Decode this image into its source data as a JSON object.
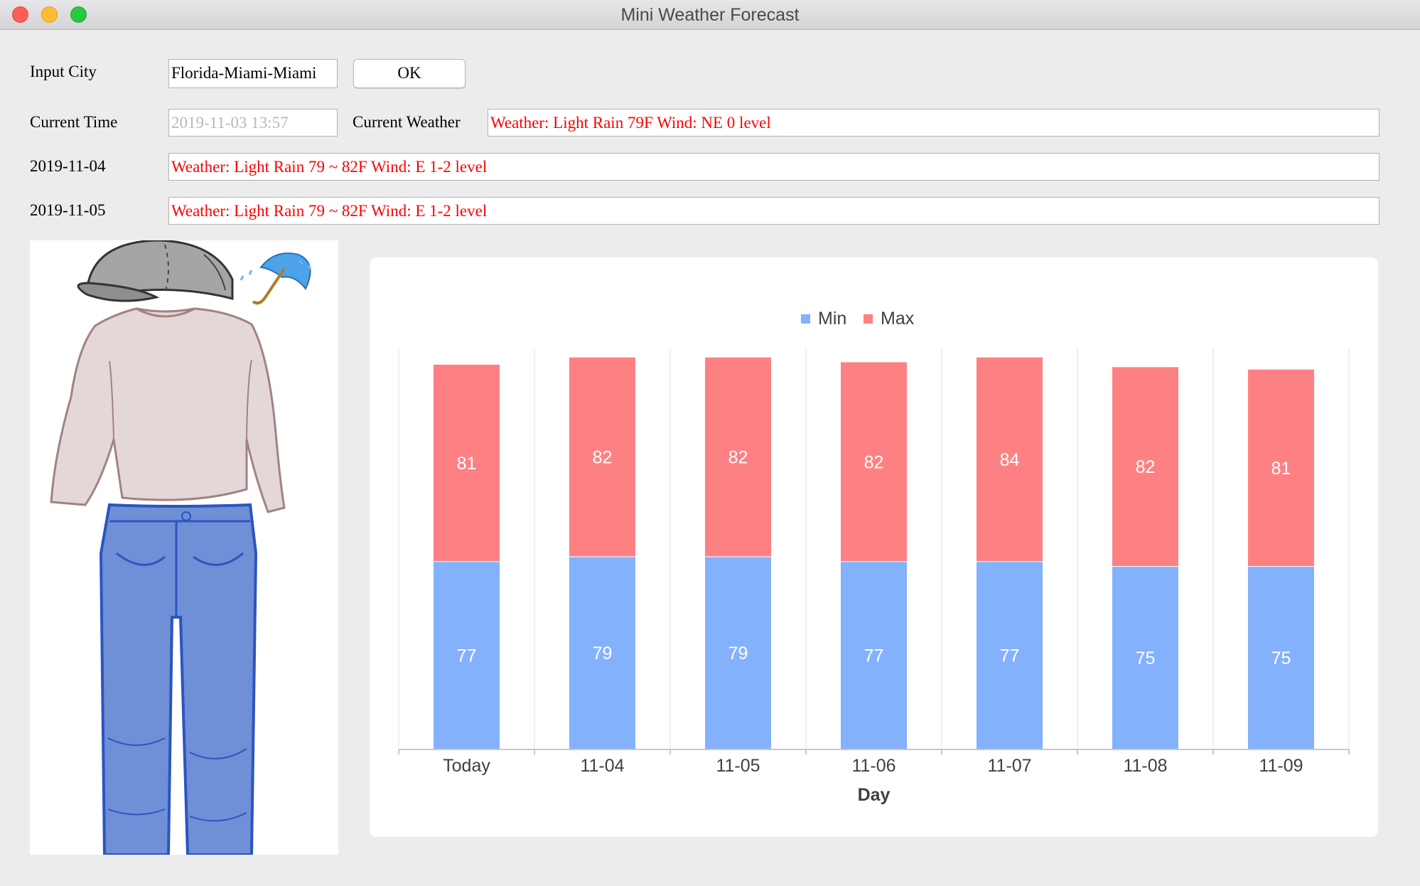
{
  "window": {
    "title": "Mini Weather Forecast"
  },
  "form": {
    "input_city_label": "Input City",
    "city_value": "Florida-Miami-Miami",
    "ok_label": "OK",
    "current_time_label": "Current Time",
    "current_time_value": "2019-11-03 13:57",
    "current_weather_label": "Current Weather",
    "current_weather_value": "Weather: Light Rain  79F  Wind: NE  0 level",
    "day1_label": "2019-11-04",
    "day1_value": "Weather: Light Rain  79 ~ 82F  Wind: E 1-2 level",
    "day2_label": "2019-11-05",
    "day2_value": "Weather: Light Rain  79 ~ 82F  Wind: E 1-2 level",
    "text_color": "#ff0000"
  },
  "outfit": {
    "items": [
      "cap-icon",
      "umbrella-icon",
      "sweater-icon",
      "jeans-icon"
    ]
  },
  "chart_data": {
    "type": "bar",
    "stacked": true,
    "categories": [
      "Today",
      "11-04",
      "11-05",
      "11-06",
      "11-07",
      "11-08",
      "11-09"
    ],
    "series": [
      {
        "name": "Min",
        "color": "#84b1fc",
        "values": [
          77,
          79,
          79,
          77,
          77,
          75,
          75
        ]
      },
      {
        "name": "Max",
        "color": "#fd8183",
        "values": [
          81,
          82,
          82,
          82,
          84,
          82,
          81
        ]
      }
    ],
    "xlabel": "Day",
    "ylabel": "",
    "ylim": [
      0,
      165
    ],
    "legend": "top-center",
    "grid": "vertical"
  }
}
